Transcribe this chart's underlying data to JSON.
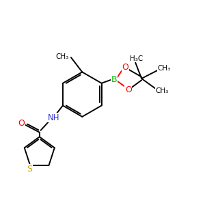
{
  "bg_color": "#ffffff",
  "bond_color": "#000000",
  "B_color": "#00bb00",
  "O_color": "#ff0000",
  "N_color": "#3333cc",
  "S_color": "#ccaa00",
  "C_color": "#000000",
  "line_width": 1.4,
  "figsize": [
    3.0,
    3.0
  ],
  "dpi": 100,
  "xlim": [
    0,
    10
  ],
  "ylim": [
    0,
    10
  ]
}
